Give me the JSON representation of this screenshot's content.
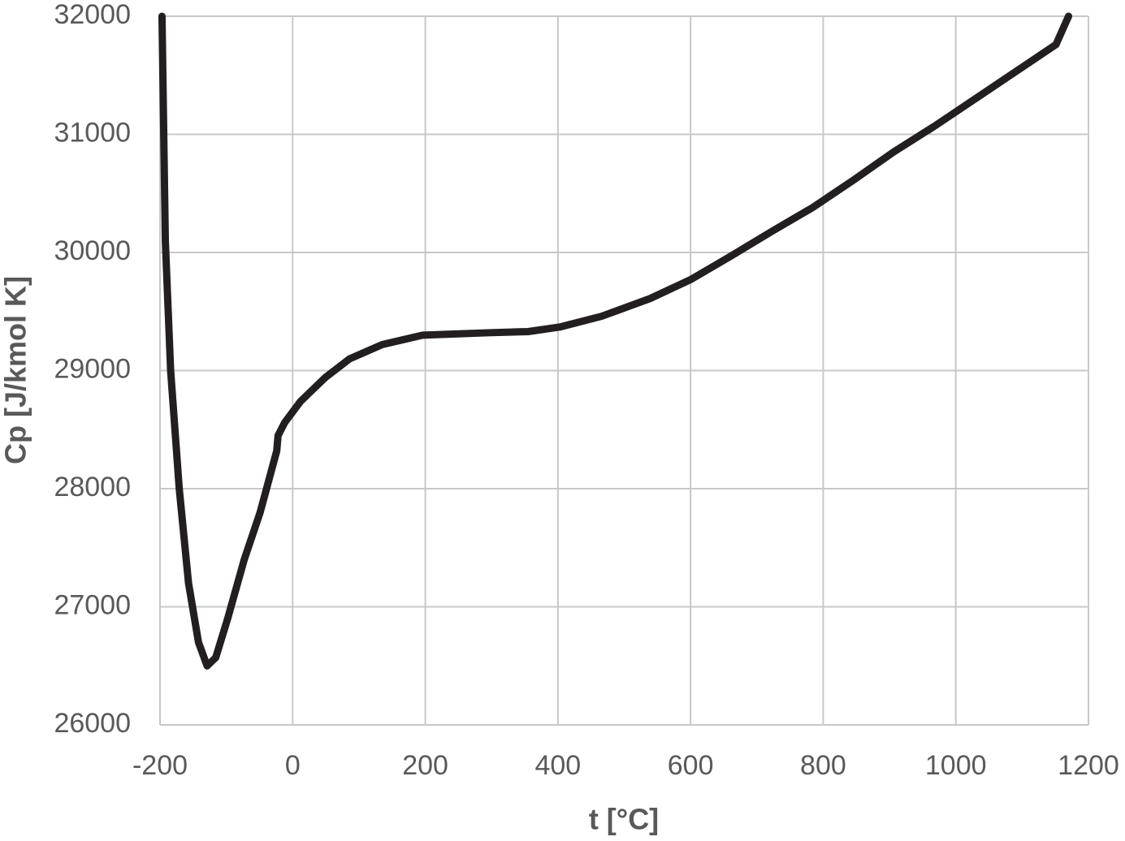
{
  "chart_data": {
    "type": "line",
    "x_label": "t [°C]",
    "y_label": "Cp [J/kmol K]",
    "series": [
      {
        "name": "Cp",
        "color": "#231f20",
        "x": [
          -197,
          -192,
          -184,
          -171,
          -157,
          -142,
          -129,
          -116,
          -98,
          -73,
          -49,
          -24,
          -22,
          -12,
          12,
          49,
          86,
          135,
          196,
          294,
          355,
          404,
          466,
          539,
          600,
          661,
          723,
          784,
          845,
          906,
          968,
          1029,
          1090,
          1151,
          1170
        ],
        "values": [
          32000,
          30100,
          29000,
          28000,
          27200,
          26700,
          26500,
          26570,
          26900,
          27400,
          27800,
          28320,
          28450,
          28560,
          28740,
          28940,
          29100,
          29220,
          29300,
          29320,
          29330,
          29370,
          29460,
          29610,
          29770,
          29970,
          30180,
          30380,
          30610,
          30850,
          31070,
          31300,
          31530,
          31760,
          32000
        ]
      }
    ],
    "xlim": [
      -200,
      1200
    ],
    "xticks": [
      -200,
      0,
      200,
      400,
      600,
      800,
      1000,
      1200
    ],
    "ylim": [
      26000,
      32000
    ],
    "yticks": [
      26000,
      27000,
      28000,
      29000,
      30000,
      31000,
      32000
    ],
    "grid": true
  }
}
